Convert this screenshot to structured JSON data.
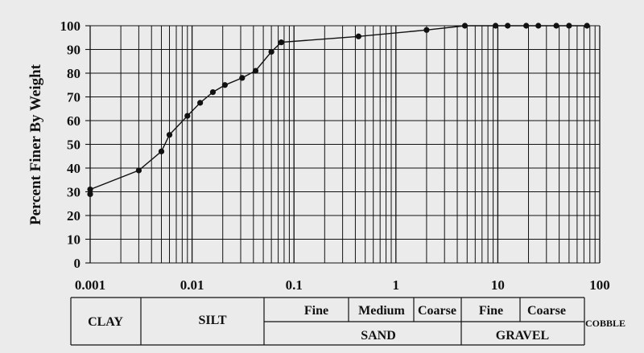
{
  "chart_data": {
    "type": "line",
    "xscale": "log",
    "xlim": [
      0.001,
      100
    ],
    "ylim": [
      0,
      100
    ],
    "grid": true,
    "ylabel": "Percent Finer By Weight",
    "xlabel": "",
    "x_tick_labels": [
      "0.001",
      "0.01",
      "0.1",
      "1",
      "10",
      "100"
    ],
    "y_tick_labels": [
      "0",
      "10",
      "20",
      "30",
      "40",
      "50",
      "60",
      "70",
      "80",
      "90",
      "100"
    ],
    "series": [
      {
        "x": [
          0.001,
          0.001,
          0.003,
          0.005,
          0.006,
          0.009,
          0.012,
          0.016,
          0.021,
          0.031,
          0.042,
          0.06,
          0.075,
          0.43,
          2.0,
          4.75,
          9.5,
          12.5,
          19,
          25,
          37.5,
          50,
          75
        ],
        "y": [
          29,
          31,
          39,
          47,
          54,
          62,
          67.5,
          72,
          75,
          78,
          81,
          89,
          93,
          95.5,
          98.2,
          100,
          100,
          100,
          100,
          100,
          100,
          100,
          100
        ]
      }
    ],
    "classification": {
      "clay": "CLAY",
      "silt": "SILT",
      "sand_fine": "Fine",
      "sand_medium": "Medium",
      "sand_coarse": "Coarse",
      "sand": "SAND",
      "gravel_fine": "Fine",
      "gravel_coarse": "Coarse",
      "gravel": "GRAVEL",
      "cobble": "COBBLE"
    }
  }
}
